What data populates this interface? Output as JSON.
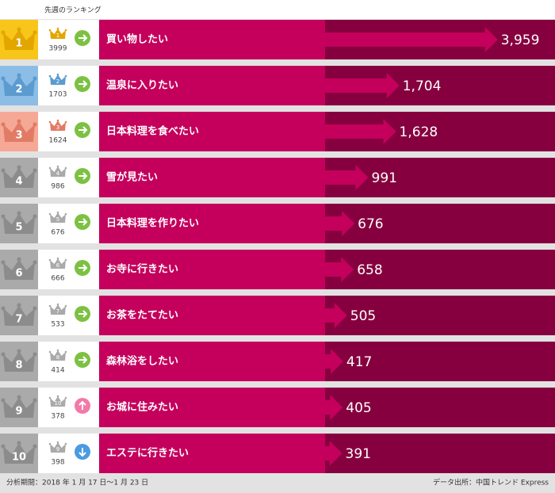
{
  "chart_data": {
    "type": "bar",
    "header": "先週のランキング",
    "ranks": [
      1,
      2,
      3,
      4,
      5,
      6,
      7,
      8,
      9,
      10
    ],
    "prev_ranks": [
      1,
      2,
      3,
      4,
      5,
      6,
      7,
      8,
      10,
      9
    ],
    "prev_values": [
      3999,
      1703,
      1624,
      986,
      676,
      666,
      533,
      414,
      378,
      398
    ],
    "trends": [
      "same",
      "same",
      "same",
      "same",
      "same",
      "same",
      "same",
      "same",
      "up",
      "down"
    ],
    "categories": [
      "買い物したい",
      "温泉に入りたい",
      "日本料理を食べたい",
      "雪が見たい",
      "日本料理を作りたい",
      "お寺に行きたい",
      "お茶をたてたい",
      "森林浴をしたい",
      "お城に住みたい",
      "エステに行きたい"
    ],
    "values": [
      3959,
      1704,
      1628,
      991,
      676,
      658,
      505,
      417,
      405,
      391
    ],
    "value_labels": [
      "3,959",
      "1,704",
      "1,628",
      "991",
      "676",
      "658",
      "505",
      "417",
      "405",
      "391"
    ],
    "color": "#c4005c",
    "footer_left": "分析期間：2018 年 1 月 17 日〜1 月 23 日",
    "footer_right": "データ出所：中国トレンド Express"
  }
}
